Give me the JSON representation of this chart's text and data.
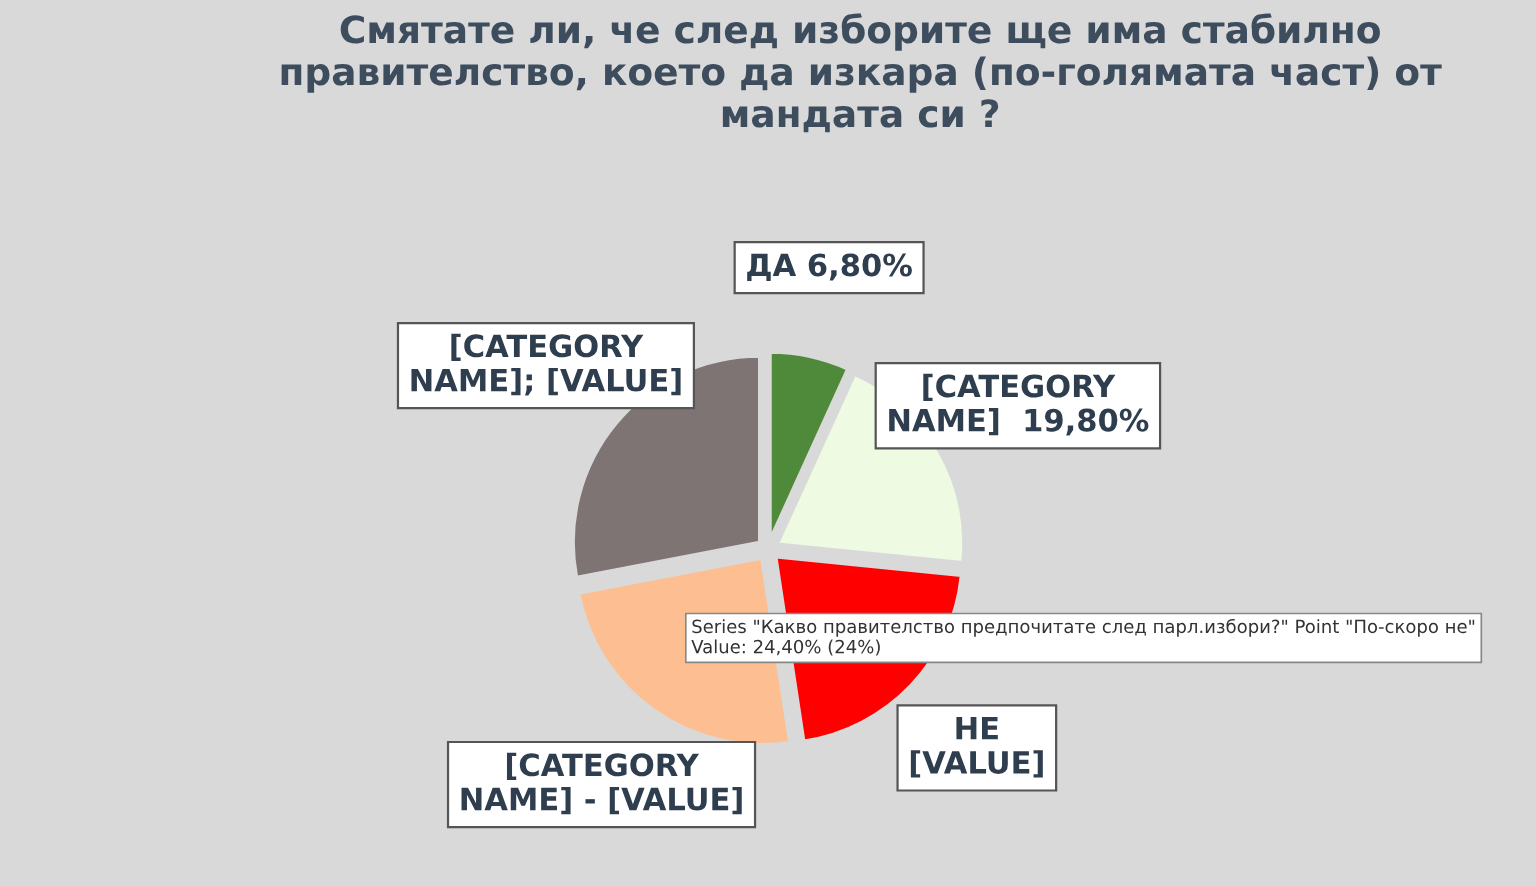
{
  "chart_data": {
    "type": "pie",
    "title": "Смятате ли, че след изборите ще има стабилно правителство, което да изкара (по-голямата част) от мандата си ?",
    "categories": [
      "ДА",
      "[CATEGORY NAME]",
      "НЕ",
      "[CATEGORY NAME]",
      "[CATEGORY NAME]"
    ],
    "values": [
      6.8,
      19.8,
      21,
      24.4,
      28
    ],
    "colors": [
      "#4f8a3b",
      "#eefae2",
      "#ff0000",
      "#fdbf91",
      "#7f7474"
    ],
    "value_labels": [
      " 6,80%",
      "  19,80%",
      "\n[VALUE]",
      " - [VALUE]",
      "; [VALUE]"
    ],
    "annotations": [
      "Series \"Какво правителство предпочитате след парл.избори?\" Point \"По-скоро не\"\nValue: 24,40% (24%)"
    ]
  }
}
